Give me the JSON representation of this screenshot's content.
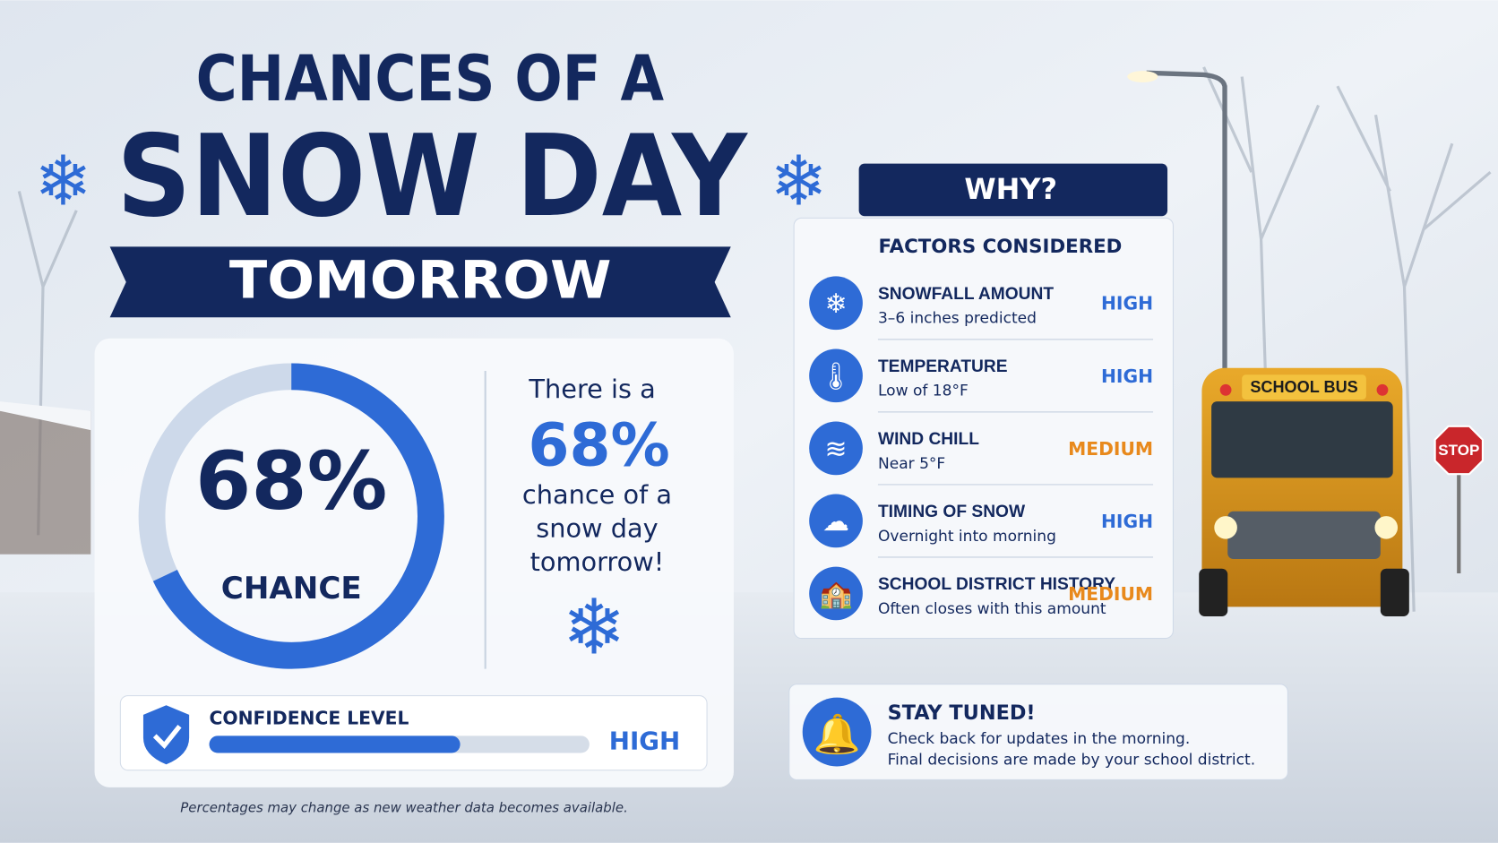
{
  "title": {
    "line1": "CHANCES OF A",
    "line2": "SNOW DAY",
    "banner": "TOMORROW"
  },
  "gauge": {
    "value": 68,
    "value_label": "68%",
    "caption": "CHANCE"
  },
  "statement": {
    "line1": "There is a",
    "highlight": "68%",
    "line2": "chance of a",
    "line3": "snow day",
    "line4": "tomorrow!"
  },
  "confidence": {
    "label": "CONFIDENCE LEVEL",
    "level": "HIGH",
    "fill": 66
  },
  "footnote": "Percentages may change as new weather data becomes available.",
  "why": {
    "heading": "WHY?",
    "subheading": "FACTORS CONSIDERED",
    "factors": [
      {
        "name": "SNOWFALL AMOUNT",
        "detail": "3–6 inches predicted",
        "rating": "HIGH"
      },
      {
        "name": "TEMPERATURE",
        "detail": "Low of 18°F",
        "rating": "HIGH"
      },
      {
        "name": "WIND CHILL",
        "detail": "Near 5°F",
        "rating": "MEDIUM"
      },
      {
        "name": "TIMING OF SNOW",
        "detail": "Overnight into morning",
        "rating": "HIGH"
      },
      {
        "name": "SCHOOL DISTRICT HISTORY",
        "detail": "Often closes with this amount",
        "rating": "MEDIUM"
      }
    ]
  },
  "stay_tuned": {
    "title": "STAY TUNED!",
    "line1": "Check back for updates in the morning.",
    "line2": "Final decisions are made by your school district."
  },
  "scene": {
    "bus_sign": "SCHOOL BUS",
    "stop_sign": "STOP"
  }
}
